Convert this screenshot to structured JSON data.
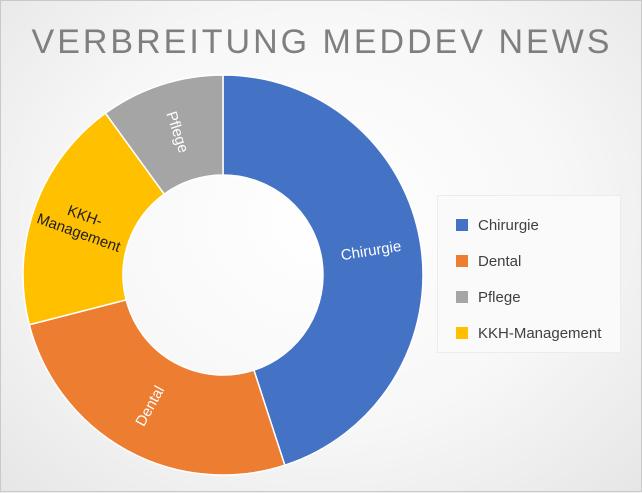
{
  "chart_data": {
    "type": "pie",
    "variant": "doughnut",
    "title": "VERBREITUNG MEDDEV NEWS",
    "categories": [
      "Chirurgie",
      "Dental",
      "Pflege",
      "KKH-Management"
    ],
    "values": [
      45,
      26,
      10,
      19
    ],
    "value_unit": "percent (estimated, no data labels shown)",
    "slice_order_clockwise_from_top": [
      "Chirurgie",
      "Dental",
      "KKH-Management",
      "Pflege"
    ],
    "colors": {
      "Chirurgie": "#4472C4",
      "Dental": "#ED7D31",
      "Pflege": "#A5A5A5",
      "KKH-Management": "#FFC000"
    },
    "slice_labels": [
      "Chirurgie",
      "Dental",
      "Pflege",
      "KKH-Management"
    ],
    "legend": {
      "position": "right",
      "entries": [
        "Chirurgie",
        "Dental",
        "Pflege",
        "KKH-Management"
      ]
    }
  }
}
